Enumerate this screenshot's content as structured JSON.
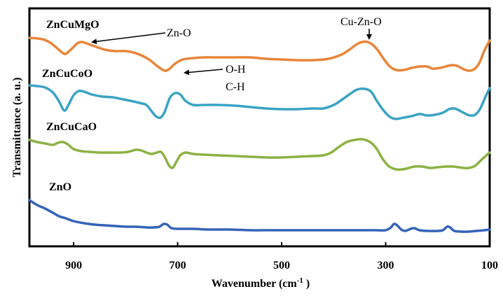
{
  "chart_data": {
    "type": "line",
    "title": "",
    "xlabel": "Wavenumber (cm",
    "xlabel_sup": "-1",
    "xlabel_suffix": " )",
    "ylabel": "Transmittance (a. u.)",
    "xlim": [
      985,
      100
    ],
    "x_reversed": true,
    "xticks": [
      900,
      700,
      500,
      300,
      100
    ],
    "grid": false,
    "legend": "none",
    "y_units": "arbitrary offset transmittance",
    "series": [
      {
        "name": "ZnCuMgO",
        "color": "#e8853a",
        "points": [
          [
            985,
            54
          ],
          [
            960,
            56
          ],
          [
            945,
            61
          ],
          [
            930,
            70
          ],
          [
            918,
            77
          ],
          [
            910,
            74
          ],
          [
            900,
            67
          ],
          [
            893,
            62
          ],
          [
            885,
            60
          ],
          [
            875,
            62
          ],
          [
            860,
            66
          ],
          [
            840,
            71
          ],
          [
            820,
            73
          ],
          [
            800,
            73
          ],
          [
            785,
            75
          ],
          [
            770,
            79
          ],
          [
            755,
            85
          ],
          [
            740,
            94
          ],
          [
            725,
            101
          ],
          [
            715,
            98
          ],
          [
            705,
            91
          ],
          [
            690,
            85
          ],
          [
            670,
            83
          ],
          [
            650,
            82
          ],
          [
            620,
            82
          ],
          [
            590,
            82
          ],
          [
            560,
            82
          ],
          [
            530,
            84
          ],
          [
            500,
            85
          ],
          [
            470,
            86
          ],
          [
            440,
            86
          ],
          [
            410,
            84
          ],
          [
            385,
            78
          ],
          [
            368,
            70
          ],
          [
            355,
            63
          ],
          [
            345,
            60
          ],
          [
            335,
            60
          ],
          [
            325,
            64
          ],
          [
            315,
            72
          ],
          [
            303,
            85
          ],
          [
            292,
            95
          ],
          [
            280,
            100
          ],
          [
            265,
            100
          ],
          [
            250,
            97
          ],
          [
            235,
            95
          ],
          [
            220,
            95
          ],
          [
            210,
            98
          ],
          [
            195,
            97
          ],
          [
            180,
            94
          ],
          [
            170,
            93
          ],
          [
            160,
            95
          ],
          [
            150,
            99
          ],
          [
            140,
            101
          ],
          [
            130,
            99
          ],
          [
            120,
            90
          ],
          [
            110,
            72
          ],
          [
            100,
            58
          ]
        ]
      },
      {
        "name": "ZnCuCoO",
        "color": "#3aa3c4",
        "points": [
          [
            985,
            122
          ],
          [
            970,
            123
          ],
          [
            955,
            125
          ],
          [
            940,
            132
          ],
          [
            928,
            145
          ],
          [
            918,
            158
          ],
          [
            910,
            150
          ],
          [
            900,
            136
          ],
          [
            890,
            130
          ],
          [
            880,
            131
          ],
          [
            865,
            135
          ],
          [
            845,
            138
          ],
          [
            825,
            139
          ],
          [
            805,
            142
          ],
          [
            785,
            145
          ],
          [
            768,
            148
          ],
          [
            760,
            150
          ],
          [
            752,
            157
          ],
          [
            742,
            166
          ],
          [
            733,
            168
          ],
          [
            725,
            160
          ],
          [
            715,
            140
          ],
          [
            705,
            133
          ],
          [
            695,
            135
          ],
          [
            685,
            144
          ],
          [
            670,
            150
          ],
          [
            650,
            150
          ],
          [
            620,
            150
          ],
          [
            590,
            151
          ],
          [
            560,
            153
          ],
          [
            530,
            155
          ],
          [
            500,
            156
          ],
          [
            470,
            156
          ],
          [
            440,
            155
          ],
          [
            420,
            155
          ],
          [
            400,
            150
          ],
          [
            385,
            143
          ],
          [
            370,
            135
          ],
          [
            355,
            128
          ],
          [
            340,
            127
          ],
          [
            328,
            131
          ],
          [
            318,
            143
          ],
          [
            305,
            157
          ],
          [
            292,
            167
          ],
          [
            280,
            170
          ],
          [
            265,
            168
          ],
          [
            250,
            166
          ],
          [
            235,
            163
          ],
          [
            220,
            165
          ],
          [
            205,
            164
          ],
          [
            190,
            161
          ],
          [
            178,
            156
          ],
          [
            168,
            155
          ],
          [
            158,
            158
          ],
          [
            148,
            162
          ],
          [
            138,
            165
          ],
          [
            128,
            164
          ],
          [
            118,
            155
          ],
          [
            108,
            138
          ],
          [
            100,
            126
          ]
        ]
      },
      {
        "name": "ZnCuCaO",
        "color": "#8db143",
        "points": [
          [
            985,
            200
          ],
          [
            970,
            203
          ],
          [
            955,
            205
          ],
          [
            940,
            207
          ],
          [
            930,
            204
          ],
          [
            920,
            203
          ],
          [
            910,
            207
          ],
          [
            900,
            213
          ],
          [
            885,
            216
          ],
          [
            870,
            217
          ],
          [
            850,
            218
          ],
          [
            830,
            218
          ],
          [
            810,
            218
          ],
          [
            795,
            217
          ],
          [
            780,
            214
          ],
          [
            770,
            215
          ],
          [
            760,
            218
          ],
          [
            750,
            220
          ],
          [
            740,
            218
          ],
          [
            732,
            217
          ],
          [
            725,
            224
          ],
          [
            717,
            236
          ],
          [
            710,
            240
          ],
          [
            703,
            232
          ],
          [
            695,
            222
          ],
          [
            685,
            218
          ],
          [
            670,
            220
          ],
          [
            650,
            221
          ],
          [
            620,
            222
          ],
          [
            590,
            223
          ],
          [
            560,
            224
          ],
          [
            530,
            225
          ],
          [
            500,
            225
          ],
          [
            470,
            224
          ],
          [
            440,
            223
          ],
          [
            420,
            222
          ],
          [
            405,
            218
          ],
          [
            390,
            210
          ],
          [
            375,
            203
          ],
          [
            360,
            200
          ],
          [
            345,
            199
          ],
          [
            330,
            203
          ],
          [
            318,
            212
          ],
          [
            305,
            228
          ],
          [
            293,
            238
          ],
          [
            280,
            242
          ],
          [
            268,
            242
          ],
          [
            255,
            240
          ],
          [
            245,
            238
          ],
          [
            230,
            238
          ],
          [
            215,
            240
          ],
          [
            200,
            239
          ],
          [
            185,
            238
          ],
          [
            170,
            238
          ],
          [
            160,
            239
          ],
          [
            150,
            240
          ],
          [
            140,
            240
          ],
          [
            128,
            237
          ],
          [
            118,
            230
          ],
          [
            108,
            223
          ],
          [
            100,
            218
          ]
        ]
      },
      {
        "name": "ZnO",
        "color": "#3563b8",
        "points": [
          [
            985,
            286
          ],
          [
            970,
            293
          ],
          [
            955,
            298
          ],
          [
            940,
            304
          ],
          [
            928,
            309
          ],
          [
            915,
            312
          ],
          [
            900,
            316
          ],
          [
            880,
            319
          ],
          [
            860,
            321
          ],
          [
            840,
            322
          ],
          [
            820,
            323
          ],
          [
            800,
            324
          ],
          [
            780,
            324
          ],
          [
            760,
            325
          ],
          [
            745,
            325
          ],
          [
            735,
            324
          ],
          [
            727,
            320
          ],
          [
            720,
            321
          ],
          [
            712,
            326
          ],
          [
            700,
            327
          ],
          [
            670,
            327
          ],
          [
            640,
            328
          ],
          [
            600,
            328
          ],
          [
            560,
            329
          ],
          [
            520,
            329
          ],
          [
            480,
            329
          ],
          [
            440,
            329
          ],
          [
            400,
            329
          ],
          [
            360,
            329
          ],
          [
            320,
            329
          ],
          [
            300,
            329
          ],
          [
            290,
            325
          ],
          [
            284,
            320
          ],
          [
            278,
            322
          ],
          [
            270,
            328
          ],
          [
            262,
            330
          ],
          [
            252,
            327
          ],
          [
            245,
            326
          ],
          [
            235,
            329
          ],
          [
            220,
            330
          ],
          [
            200,
            330
          ],
          [
            190,
            329
          ],
          [
            182,
            324
          ],
          [
            176,
            325
          ],
          [
            168,
            330
          ],
          [
            155,
            331
          ],
          [
            140,
            331
          ],
          [
            125,
            330
          ],
          [
            110,
            329
          ],
          [
            100,
            328
          ]
        ]
      }
    ],
    "series_labels": [
      {
        "text": "ZnCuMgO"
      },
      {
        "text": "ZnCuCoO"
      },
      {
        "text": "ZnCuCaO"
      },
      {
        "text": "ZnO"
      }
    ],
    "annotations": [
      {
        "text": "Zn-O",
        "target": [
          885,
          60
        ]
      },
      {
        "text": "O-H",
        "target": [
          712,
          100
        ]
      },
      {
        "text": "C-H",
        "target": null
      },
      {
        "text": "Cu-Zn-O",
        "target": [
          340,
          57
        ]
      }
    ]
  }
}
